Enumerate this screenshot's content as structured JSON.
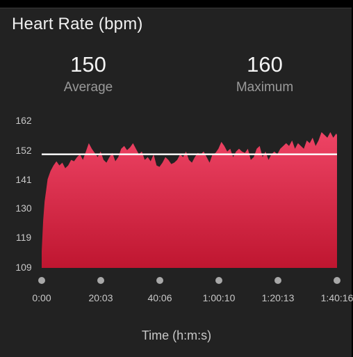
{
  "header": {
    "title": "Heart Rate (bpm)"
  },
  "stats": {
    "average": {
      "value": "150",
      "label": "Average"
    },
    "maximum": {
      "value": "160",
      "label": "Maximum"
    }
  },
  "colors": {
    "background": "#222222",
    "fill_top": "#ee4465",
    "fill_bottom": "#bf1630",
    "average_line": "#ffffff"
  },
  "chart_data": {
    "type": "area",
    "xlabel": "Time (h:m:s)",
    "ylabel": "",
    "ylim": [
      109,
      162
    ],
    "yticks": [
      "162",
      "152",
      "141",
      "130",
      "119",
      "109"
    ],
    "xticks": [
      "0:00",
      "20:03",
      "40:06",
      "1:00:10",
      "1:20:13",
      "1:40:16"
    ],
    "average_line": 150,
    "series": [
      {
        "x_minutes": [
          0,
          0.5,
          1,
          1.5,
          2,
          3,
          4,
          5,
          6,
          7,
          8,
          9,
          10,
          11,
          12,
          13,
          14,
          15,
          16,
          17,
          18,
          19,
          20,
          21,
          22,
          23,
          24,
          25,
          26,
          27,
          28,
          29,
          30,
          31,
          32,
          33,
          34,
          35,
          36,
          37,
          38,
          39,
          40,
          41,
          42,
          43,
          44,
          45,
          46,
          47,
          48,
          49,
          50,
          51,
          52,
          53,
          54,
          55,
          56,
          57,
          58,
          59,
          60,
          61,
          62,
          63,
          64,
          65,
          66,
          67,
          68,
          69,
          70,
          71,
          72,
          73,
          74,
          75,
          76,
          77,
          78,
          79,
          80,
          81,
          82,
          83,
          84,
          85,
          86,
          87,
          88,
          89,
          90,
          91,
          92,
          93,
          94,
          95,
          96,
          97,
          98,
          99,
          100,
          100.27
        ],
        "values": [
          115,
          126,
          133,
          137,
          141,
          144,
          146,
          147.5,
          146,
          147,
          145,
          146,
          148,
          147.5,
          149,
          150,
          148,
          151,
          154,
          152,
          150.5,
          149,
          151,
          148,
          147,
          149,
          150.5,
          147.5,
          149,
          152,
          153,
          151.5,
          152.5,
          154,
          152,
          150,
          151,
          148,
          149,
          147.5,
          150,
          146,
          145.5,
          147,
          149,
          148,
          146.5,
          147,
          148,
          150,
          149,
          151,
          148,
          147,
          149,
          150.5,
          150,
          151,
          149,
          147,
          150,
          150.5,
          152,
          154.5,
          153,
          151,
          152,
          149,
          151,
          152,
          151,
          150.5,
          152,
          148,
          149,
          152,
          153,
          149,
          151,
          148,
          150,
          151,
          150,
          152,
          153,
          154,
          153,
          155,
          152,
          154,
          153,
          152,
          155,
          154,
          156,
          153,
          155,
          158,
          157,
          156,
          158,
          156,
          157.5,
          157
        ]
      }
    ]
  }
}
